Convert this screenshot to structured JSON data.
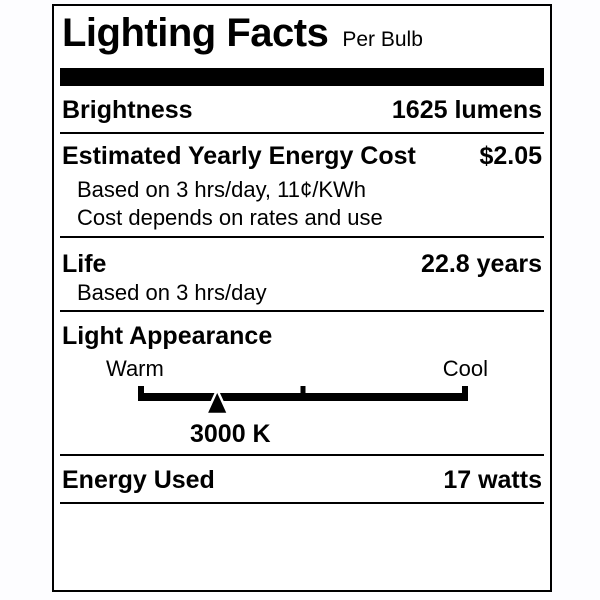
{
  "title": "Lighting Facts",
  "subtitle": "Per Bulb",
  "brightness": {
    "label": "Brightness",
    "value": "1625 lumens"
  },
  "energy_cost": {
    "label": "Estimated Yearly Energy Cost",
    "value": "$2.05",
    "note1": "Based on 3 hrs/day, 11¢/KWh",
    "note2": "Cost depends on rates and use"
  },
  "life": {
    "label": "Life",
    "value": "22.8 years",
    "note1": "Based on 3 hrs/day"
  },
  "light_appearance": {
    "label": "Light Appearance",
    "warm_label": "Warm",
    "cool_label": "Cool",
    "color_temperature": "3000 K",
    "marker_position_pct": 24,
    "scale_icon": "warm-cool-scale",
    "marker_icon": "triangle-up-marker"
  },
  "energy_used": {
    "label": "Energy Used",
    "value": "17 watts"
  },
  "colors": {
    "ink": "#000000",
    "paper": "#ffffff"
  }
}
